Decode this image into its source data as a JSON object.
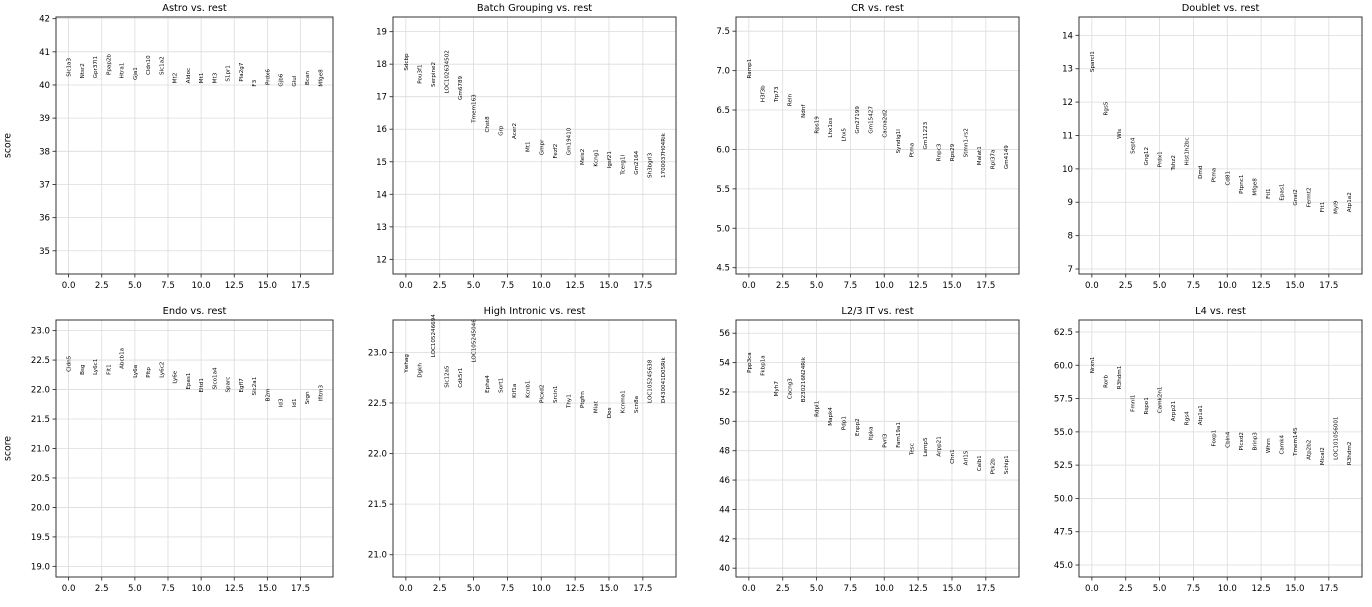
{
  "figure": {
    "ylabel": "score",
    "background_color": "#ffffff",
    "grid_color": "#dcdcdc",
    "axis_color": "#333333",
    "tick_color": "#333333",
    "label_color": "#333333",
    "xtick_labels": [
      "0.0",
      "2.5",
      "5.0",
      "7.5",
      "10.0",
      "12.5",
      "15.0",
      "17.5"
    ],
    "xtick_values": [
      0,
      2.5,
      5,
      7.5,
      10,
      12.5,
      15,
      17.5
    ],
    "xlim": [
      -0.95,
      19.95
    ]
  },
  "chart_data": [
    {
      "type": "scatter",
      "title": "Astro vs. rest",
      "ylabel": "score",
      "show_ylabel": true,
      "ylim": [
        34.3,
        42.05
      ],
      "yticks": [
        42,
        41,
        40,
        39,
        38,
        37,
        36,
        35
      ],
      "ytick_decimals": 0,
      "x": [
        0,
        1,
        2,
        3,
        4,
        5,
        6,
        7,
        8,
        9,
        10,
        11,
        12,
        13,
        14,
        15,
        16,
        17,
        18,
        19
      ],
      "genes": [
        "Slc1a3",
        "Ntsr2",
        "Gpr37l1",
        "Ppap2b",
        "Htra1",
        "Gja1",
        "Cldn10",
        "Slc1a2",
        "Mt2",
        "Aldoc",
        "Mt1",
        "Mt3",
        "S1pr1",
        "Pla2g7",
        "F3",
        "Prdx6",
        "Gjb6",
        "Glul",
        "Bcan",
        "Mfge8"
      ],
      "scores": [
        40.25,
        40.2,
        40.2,
        40.3,
        40.2,
        40.15,
        40.3,
        40.3,
        40.05,
        40.05,
        40.05,
        40.05,
        40.1,
        40.1,
        39.95,
        40.0,
        39.95,
        39.95,
        40.0,
        39.95
      ]
    },
    {
      "type": "scatter",
      "title": "Batch Grouping vs. rest",
      "ylabel": "score",
      "show_ylabel": false,
      "ylim": [
        11.55,
        19.45
      ],
      "yticks": [
        19,
        18,
        17,
        16,
        15,
        14,
        13,
        12
      ],
      "ytick_decimals": 0,
      "x": [
        0,
        1,
        2,
        3,
        4,
        5,
        6,
        7,
        8,
        9,
        10,
        11,
        12,
        13,
        14,
        15,
        16,
        17,
        18,
        19
      ],
      "genes": [
        "Sdcbp",
        "Pou3f1",
        "Serpine2",
        "LOC102634502",
        "Gm6789",
        "Tmem163",
        "Chst8",
        "Grp",
        "Acer2",
        "Mt1",
        "Gmpr",
        "Fezf2",
        "Gm19410",
        "Meis2",
        "Kcng1",
        "Igsf21",
        "Tcerg1l",
        "Gm2164",
        "Sh3bgrl3",
        "1700037H04Rik"
      ],
      "scores": [
        17.8,
        17.4,
        17.3,
        17.1,
        16.9,
        16.2,
        15.9,
        15.8,
        15.7,
        15.3,
        15.2,
        15.1,
        15.2,
        14.9,
        14.85,
        14.8,
        14.6,
        14.6,
        14.5,
        14.5
      ]
    },
    {
      "type": "scatter",
      "title": "CR vs. rest",
      "ylabel": "score",
      "show_ylabel": false,
      "ylim": [
        4.42,
        7.68
      ],
      "yticks": [
        7.5,
        7.0,
        6.5,
        6.0,
        5.5,
        5.0,
        4.5
      ],
      "ytick_decimals": 1,
      "x": [
        0,
        1,
        2,
        3,
        4,
        5,
        6,
        7,
        8,
        9,
        10,
        11,
        12,
        13,
        14,
        15,
        16,
        17,
        18,
        19
      ],
      "genes": [
        "Ramp1",
        "H3f3b",
        "Trp73",
        "Reln",
        "Ndnf",
        "Rps19",
        "Lhx1os",
        "Lhx5",
        "Gm27199",
        "Gm15427",
        "Cacna2d2",
        "Syndig1l",
        "Ptma",
        "Gm11223",
        "Rnpc3",
        "Rps29",
        "Stmn1-rs2",
        "Malat1",
        "Rpl37a",
        "Gm4149"
      ],
      "scores": [
        6.9,
        6.6,
        6.6,
        6.55,
        6.4,
        6.2,
        6.15,
        6.1,
        6.2,
        6.2,
        6.15,
        5.95,
        5.9,
        6.0,
        5.85,
        5.85,
        5.9,
        5.8,
        5.75,
        5.75
      ]
    },
    {
      "type": "scatter",
      "title": "Doublet vs. rest",
      "ylabel": "score",
      "show_ylabel": false,
      "ylim": [
        6.85,
        14.55
      ],
      "yticks": [
        14,
        13,
        12,
        11,
        10,
        9,
        8,
        7
      ],
      "ytick_decimals": 0,
      "x": [
        0,
        1,
        2,
        3,
        4,
        5,
        6,
        7,
        8,
        9,
        10,
        11,
        12,
        13,
        14,
        15,
        16,
        17,
        18,
        19
      ],
      "genes": [
        "Sparcl1",
        "Rgs5",
        "Wls",
        "Sept4",
        "Gng12",
        "Prdx1",
        "Tshz2",
        "Hist1h2bc",
        "Dmd",
        "Ptma",
        "Cd81",
        "Ptpnc1",
        "Mfge8",
        "Ftl1",
        "Epas1",
        "Gnai2",
        "Fermt2",
        "Flt1",
        "Myl9",
        "Atp1a2"
      ],
      "scores": [
        12.9,
        11.6,
        10.9,
        10.45,
        10.1,
        10.05,
        9.95,
        10.1,
        9.7,
        9.6,
        9.5,
        9.25,
        9.2,
        9.1,
        9.05,
        8.9,
        8.85,
        8.7,
        8.65,
        8.7
      ]
    },
    {
      "type": "scatter",
      "title": "Endo vs. rest",
      "ylabel": "score",
      "show_ylabel": true,
      "ylim": [
        18.82,
        23.18
      ],
      "yticks": [
        23.0,
        22.5,
        22.0,
        21.5,
        21.0,
        20.5,
        20.0,
        19.5,
        19.0
      ],
      "ytick_decimals": 1,
      "x": [
        0,
        1,
        2,
        3,
        4,
        5,
        6,
        7,
        8,
        9,
        10,
        11,
        12,
        13,
        14,
        15,
        16,
        17,
        18,
        19
      ],
      "genes": [
        "Cldn5",
        "Bsg",
        "Ly6c1",
        "Flt1",
        "Abcb1a",
        "Ly6a",
        "Pltp",
        "Ly6c2",
        "Ly6e",
        "Epas1",
        "Eltd1",
        "Slco1a4",
        "Sparc",
        "Egfl7",
        "Slc2a1",
        "B2m",
        "Id3",
        "Id1",
        "Srgn",
        "Ifitm3"
      ],
      "scores": [
        22.3,
        22.25,
        22.25,
        22.25,
        22.35,
        22.2,
        22.2,
        22.2,
        22.1,
        22.0,
        21.95,
        22.0,
        21.95,
        21.95,
        21.9,
        21.8,
        21.7,
        21.7,
        21.75,
        21.8
      ]
    },
    {
      "type": "scatter",
      "title": "High Intronic vs. rest",
      "ylabel": "score",
      "show_ylabel": false,
      "ylim": [
        20.78,
        23.32
      ],
      "yticks": [
        23.0,
        22.5,
        22.0,
        21.5,
        21.0
      ],
      "ytick_decimals": 1,
      "x": [
        0,
        1,
        2,
        3,
        4,
        5,
        6,
        7,
        8,
        9,
        10,
        11,
        12,
        13,
        14,
        15,
        16,
        17,
        18,
        19
      ],
      "genes": [
        "Ywhag",
        "Dgkh",
        "LOC105246694",
        "Slc12a5",
        "Cdk5r1",
        "LOC105245046",
        "Epha4",
        "Sort1",
        "Kif1a",
        "Kcnb1",
        "Plcxd2",
        "Srcin1",
        "Thy1",
        "Ptgfrn",
        "Miat",
        "Dos",
        "Kcnma1",
        "Scn8a",
        "LOC105245638",
        "D430041D05Rik"
      ],
      "scores": [
        22.8,
        22.75,
        22.95,
        22.65,
        22.65,
        22.9,
        22.6,
        22.6,
        22.55,
        22.55,
        22.5,
        22.5,
        22.45,
        22.45,
        22.4,
        22.35,
        22.4,
        22.4,
        22.5,
        22.5
      ]
    },
    {
      "type": "scatter",
      "title": "L2/3 IT vs. rest",
      "ylabel": "score",
      "show_ylabel": false,
      "ylim": [
        39.4,
        56.9
      ],
      "yticks": [
        56,
        54,
        52,
        50,
        48,
        46,
        44,
        42,
        40
      ],
      "ytick_decimals": 0,
      "x": [
        0,
        1,
        2,
        3,
        4,
        5,
        6,
        7,
        8,
        9,
        10,
        11,
        12,
        13,
        14,
        15,
        16,
        17,
        18,
        19
      ],
      "genes": [
        "Ppp3ca",
        "Fkbp1a",
        "Myh7",
        "Cacng3",
        "B230216N24Rik",
        "Rdpl1",
        "Mapk4",
        "Pdp1",
        "Enpp2",
        "Itpka",
        "Pvrl3",
        "Fam19a1",
        "Tesc",
        "Lamp5",
        "Arpp21",
        "Chn1",
        "Arl15",
        "Calb1",
        "Ptk2b",
        "Schip1"
      ],
      "scores": [
        53.3,
        53.1,
        51.7,
        51.5,
        51.3,
        50.3,
        49.7,
        49.4,
        49.0,
        48.7,
        48.2,
        48.2,
        47.7,
        47.6,
        47.6,
        47.1,
        47.0,
        46.6,
        46.4,
        46.4
      ]
    },
    {
      "type": "scatter",
      "title": "L4 vs. rest",
      "ylabel": "score",
      "show_ylabel": false,
      "ylim": [
        44.1,
        63.4
      ],
      "yticks": [
        62.5,
        60.0,
        57.5,
        55.0,
        52.5,
        50.0,
        47.5,
        45.0
      ],
      "ytick_decimals": 1,
      "x": [
        0,
        1,
        2,
        3,
        4,
        5,
        6,
        7,
        8,
        9,
        10,
        11,
        12,
        13,
        14,
        15,
        16,
        17,
        18,
        19
      ],
      "genes": [
        "Nrxn1",
        "Rorb",
        "R3hdm1",
        "Fmnl1",
        "Rspo1",
        "Camk2n1",
        "Arpp21",
        "Rgs4",
        "Atp1a1",
        "Foxp1",
        "Cbln4",
        "Plcxd2",
        "Brinp3",
        "Whrn",
        "Camk4",
        "Tmem145",
        "Atp2b2",
        "Mical2",
        "LOC101056001",
        "R3hdm2"
      ],
      "scores": [
        59.4,
        58.3,
        58.2,
        56.5,
        56.3,
        56.4,
        55.8,
        55.5,
        55.5,
        53.9,
        53.8,
        53.6,
        53.6,
        53.4,
        53.3,
        53.2,
        52.9,
        52.5,
        52.9,
        52.5
      ]
    }
  ]
}
